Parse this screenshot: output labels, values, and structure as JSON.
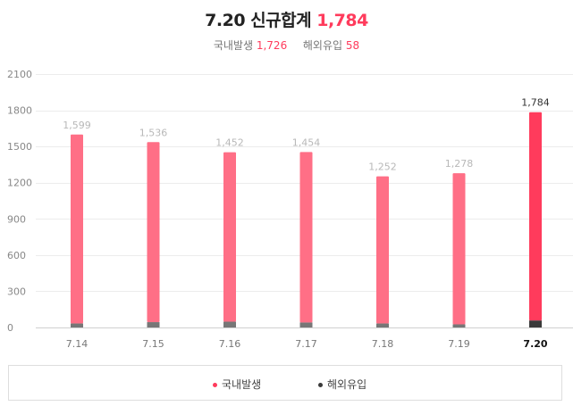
{
  "header": {
    "date": "7.20",
    "title_label": "신규합계",
    "total": "1,784",
    "domestic_label": "국내발생",
    "domestic_value": "1,726",
    "overseas_label": "해외유입",
    "overseas_value": "58"
  },
  "colors": {
    "domestic": "#ff6f86",
    "domestic_highlight": "#ff3b5c",
    "overseas": "#777777",
    "overseas_highlight": "#3a3a3a",
    "total_text": "#ff3b5c"
  },
  "chart_data": {
    "type": "bar",
    "stacked": true,
    "categories": [
      "7.14",
      "7.15",
      "7.16",
      "7.17",
      "7.18",
      "7.19",
      "7.20"
    ],
    "series": [
      {
        "name": "국내발생",
        "values": [
          1566,
          1492,
          1404,
          1412,
          1219,
          1252,
          1726
        ]
      },
      {
        "name": "해외유입",
        "values": [
          33,
          44,
          48,
          42,
          33,
          26,
          58
        ]
      }
    ],
    "totals": [
      1599,
      1536,
      1452,
      1454,
      1252,
      1278,
      1784
    ],
    "total_labels": [
      "1,599",
      "1,536",
      "1,452",
      "1,454",
      "1,252",
      "1,278",
      "1,784"
    ],
    "y_ticks": [
      0,
      300,
      600,
      900,
      1200,
      1500,
      1800,
      2100
    ],
    "ylim": [
      0,
      2100
    ],
    "grid": true,
    "legend_position": "bottom",
    "highlight_category": "7.20"
  }
}
